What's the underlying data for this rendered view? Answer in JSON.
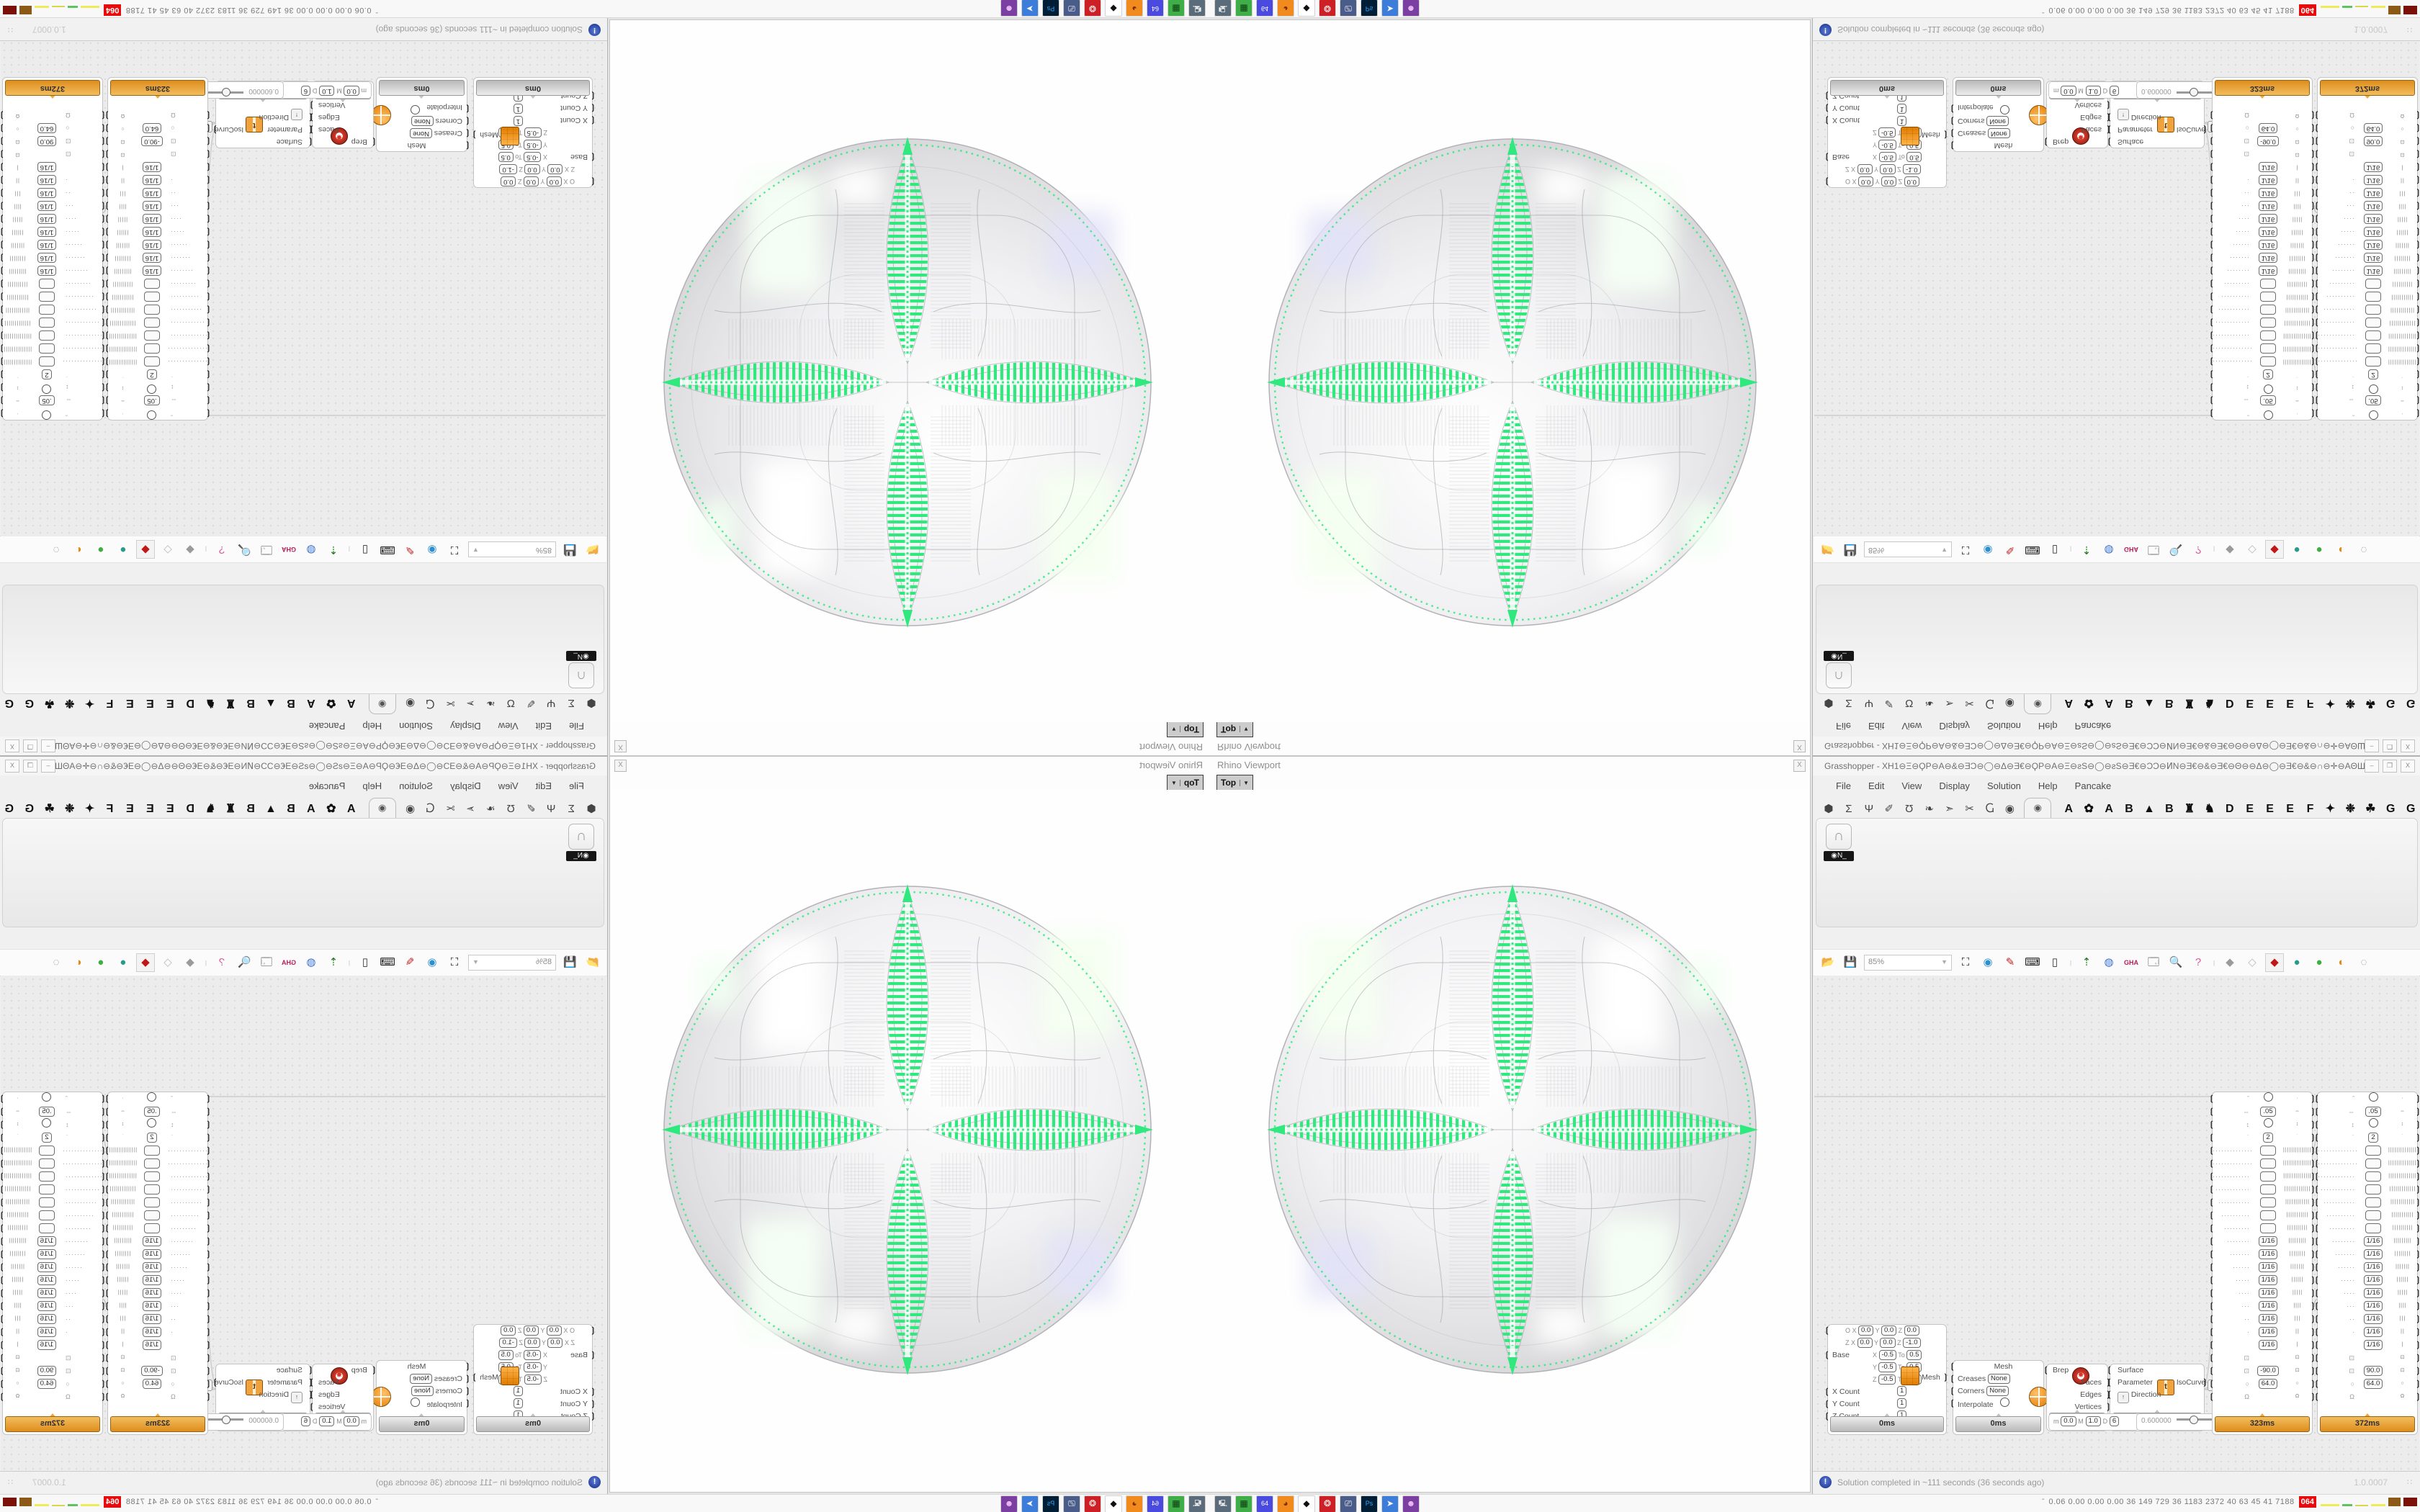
{
  "viewport_window": {
    "title": "Rhino Viewport",
    "close_glyph": "X",
    "tab": {
      "label": "Top",
      "arrow_glyph": "▼"
    },
    "sphere_colors": {
      "pattern_green": "#2FE87E",
      "wireframe": "#a6a6ab",
      "body_light": "#ffffff",
      "body_dark": "#c3c3c7",
      "highlight_lavender": "#e2e2f8"
    }
  },
  "grasshopper": {
    "title": "Grasshopper - XH1⊖Ξ⊖ϘP⊖A⊖&⊖ƎƆ⊖◯⊖Δ⊖Ǝ€⊖ϘP⊖A⊖Ξ⊖ƨS⊖◯⊖ƨS⊖Ǝ€⊖ƆƆ⊖ͶN⊖Ǝ€⊖&⊖Ǝ€⊖Θ⊖⊖Δ⊖◯⊖Ǝ€⊖&⊖∩⊖✛⊖AΘШ⊖&⊖∩ΘƆ⊖◯⊖◯⊖◯⊖◯⊖◯⊖◯⊖◯⊖◯⊖◯Ɔ_",
    "window_buttons": [
      "–",
      "❐",
      "X"
    ],
    "menus": [
      "File",
      "Edit",
      "View",
      "Display",
      "Solution",
      "Help",
      "Pancake"
    ],
    "icon_tabs": [
      {
        "name": "params",
        "glyph": "⬢"
      },
      {
        "name": "maths",
        "glyph": "Σ"
      },
      {
        "name": "sets",
        "glyph": "Ψ"
      },
      {
        "name": "vector",
        "glyph": "✐"
      },
      {
        "name": "curve",
        "glyph": "Ʊ"
      },
      {
        "name": "surface",
        "glyph": "❧"
      },
      {
        "name": "mesh",
        "glyph": "➣"
      },
      {
        "name": "intersect",
        "glyph": "✂"
      },
      {
        "name": "transform",
        "glyph": "Ⴚ"
      },
      {
        "name": "display",
        "glyph": "◉"
      }
    ],
    "selected_tab_glyph": "◉",
    "letter_tabs": [
      {
        "name": "tab-a1",
        "glyph": "A"
      },
      {
        "name": "tab-flower-icon",
        "glyph": "✿"
      },
      {
        "name": "tab-a2",
        "glyph": "A"
      },
      {
        "name": "tab-b1",
        "glyph": "B"
      },
      {
        "name": "tab-mountain-icon",
        "glyph": "▲"
      },
      {
        "name": "tab-b2",
        "glyph": "B"
      },
      {
        "name": "tab-shield-icon",
        "glyph": "♜"
      },
      {
        "name": "tab-bird-icon",
        "glyph": "♞"
      },
      {
        "name": "tab-d",
        "glyph": "D"
      },
      {
        "name": "tab-e1",
        "glyph": "E"
      },
      {
        "name": "tab-e2",
        "glyph": "E"
      },
      {
        "name": "tab-e3",
        "glyph": "E"
      },
      {
        "name": "tab-f",
        "glyph": "F"
      },
      {
        "name": "tab-fly-icon",
        "glyph": "✦"
      },
      {
        "name": "tab-bug-icon",
        "glyph": "❉"
      },
      {
        "name": "tab-leaf-icon",
        "glyph": "☘"
      },
      {
        "name": "tab-g1",
        "glyph": "G"
      },
      {
        "name": "tab-g2",
        "glyph": "G"
      }
    ],
    "ribbon_item": {
      "icon_glyph": "∩",
      "label": "◉N_"
    },
    "toolbar": {
      "zoom_value": "85%",
      "icons": [
        {
          "name": "open-file-icon",
          "glyph": "📂",
          "color": "#3fae3f"
        },
        {
          "name": "save-file-icon",
          "glyph": "💾",
          "color": "#2e5fd0"
        },
        {
          "name": "zoom-extents-icon",
          "glyph": "⛶",
          "color": "#111111"
        },
        {
          "name": "preview-eye-icon",
          "glyph": "◉",
          "color": "#2e8fd0"
        },
        {
          "name": "sketch-pen-icon",
          "glyph": "✎",
          "color": "#c42222"
        },
        {
          "name": "camera-icon",
          "glyph": "⌨",
          "color": "#222222"
        },
        {
          "name": "remote-panel-icon",
          "glyph": "▯",
          "color": "#333333"
        },
        {
          "name": "gumball-arrow-icon",
          "glyph": "⇡",
          "color": "#1a7a1a"
        },
        {
          "name": "linked-circles-icon",
          "glyph": "◍",
          "color": "#3a6fd0"
        },
        {
          "name": "gha-badge-icon",
          "glyph": "GHA",
          "color": "#b0205a"
        },
        {
          "name": "window-flag-icon",
          "glyph": "🗔",
          "color": "#444444"
        },
        {
          "name": "find-dollar-icon",
          "glyph": "🔍",
          "color": "#355a9a"
        },
        {
          "name": "help-box-icon",
          "glyph": "?",
          "color": "#e055a0"
        },
        {
          "name": "gem-gray-icon",
          "glyph": "◆",
          "color": "#9a9a9a"
        },
        {
          "name": "gem-white-icon",
          "glyph": "◇",
          "color": "#bbbbbb"
        },
        {
          "name": "gem-red-icon",
          "glyph": "◆",
          "color": "#c01818"
        },
        {
          "name": "ball-teal-icon",
          "glyph": "●",
          "color": "#2a9a8a"
        },
        {
          "name": "ball-green-icon",
          "glyph": "●",
          "color": "#3fae3f"
        },
        {
          "name": "ball-orange-icon",
          "glyph": "◐",
          "color": "#e08a1a"
        },
        {
          "name": "dashed-circle-icon",
          "glyph": "◌",
          "color": "#888888"
        }
      ]
    },
    "status": {
      "text": "Solution completed in ~111 seconds (36 seconds ago)",
      "icon_glyph": "!",
      "version": "1.0.0007",
      "grip_glyph": "∷"
    }
  },
  "nodes": {
    "mesh_box": {
      "plane_label": "P",
      "plane_rows": [
        {
          "k": "O",
          "x": "0.0",
          "y": "0.0",
          "z": "0.0"
        },
        {
          "k": "Z",
          "x": "0.0",
          "y": "0.0",
          "z": "-1.0"
        }
      ],
      "base_label": "Base",
      "domains": [
        {
          "axis": "X",
          "a": "-0.5",
          "to": "To",
          "b": "0.5"
        },
        {
          "axis": "Y",
          "a": "-0.5",
          "to": "To",
          "b": "0.5"
        },
        {
          "axis": "Z",
          "a": "-0.5",
          "to": "To",
          "b": "0.5"
        }
      ],
      "counts": [
        {
          "label": "X Count",
          "value": "1"
        },
        {
          "label": "Y Count",
          "value": "1"
        },
        {
          "label": "Z Count",
          "value": "1"
        }
      ],
      "output": "Mesh",
      "time": "0ms"
    },
    "subd": {
      "title": "Mesh",
      "rows": [
        {
          "label": "Creases",
          "value": "None"
        },
        {
          "label": "Corners",
          "value": "None"
        }
      ],
      "toggle_label": "Interpolate",
      "output": "SubD",
      "time": "0ms"
    },
    "deconstruct_brep": {
      "input": "Brep",
      "outputs": [
        "Faces",
        "Edges",
        "Vertices"
      ],
      "time": "2ms"
    },
    "isocurve": {
      "inputs": [
        "Surface",
        "Parameter",
        "Direction"
      ],
      "icon_text": "t",
      "output": "IsoCurve",
      "out_arrow": "↓",
      "dir_arrow": "↑",
      "time": "0ms"
    },
    "mini_domain": {
      "items": [
        "m",
        "0.0",
        "M",
        "1.0",
        "D",
        "6"
      ]
    },
    "mini_slider": {
      "value": "0.600000"
    },
    "tall_components": {
      "left": {
        "time": "323ms",
        "angle": "-90.0",
        "num": "64.0"
      },
      "right": {
        "time": "372ms",
        "angle": "90.0",
        "num": "64.0"
      },
      "shared_values": {
        "spacing": ".05",
        "count": "2",
        "fraction": "1/16",
        "omega": "Ω"
      },
      "rows": [
        {
          "l": "ˆ",
          "circle": true,
          "r": "·"
        },
        {
          "l": "⇔",
          "c": ".05",
          "r": "⇔"
        },
        {
          "l": "↕",
          "circle": true,
          "r": "↕"
        },
        {
          "l": "˙",
          "c": "2",
          "r": "˙"
        },
        {
          "dots": 15,
          "box": "",
          "ticks": 16
        },
        {
          "dots": 14,
          "box": "",
          "ticks": 15
        },
        {
          "dots": 13,
          "box": "",
          "ticks": 14
        },
        {
          "dots": 12,
          "box": "",
          "ticks": 13
        },
        {
          "dots": 11,
          "box": "",
          "ticks": 12
        },
        {
          "dots": 10,
          "box": "",
          "ticks": 11
        },
        {
          "dots": 9,
          "box": "",
          "ticks": 10
        },
        {
          "dots": 8,
          "box": "1/16",
          "ticks": 9
        },
        {
          "dots": 7,
          "box": "1/16",
          "ticks": 8
        },
        {
          "dots": 6,
          "box": "1/16",
          "ticks": 7
        },
        {
          "dots": 5,
          "box": "1/16",
          "ticks": 6
        },
        {
          "dots": 4,
          "box": "1/16",
          "ticks": 5
        },
        {
          "dots": 3,
          "box": "1/16",
          "ticks": 4
        },
        {
          "dots": 2,
          "box": "1/16",
          "ticks": 3
        },
        {
          "dots": 1,
          "box": "1/16",
          "ticks": 2
        },
        {
          "dots": 0,
          "box": "1/16",
          "ticks": 1
        },
        {
          "l": "⊡",
          "c": "",
          "r": "⊡"
        },
        {
          "l": "⊡",
          "c": "@angle",
          "r": "⊡"
        },
        {
          "l": "○",
          "c": "@num",
          "r": "○"
        },
        {
          "l": "Ω",
          "c": "",
          "r": "Ω"
        }
      ]
    }
  },
  "taskbar": {
    "app_icons": [
      {
        "name": "app-system-monitor",
        "glyph": "🖳",
        "bg": "#5a6b7a",
        "fg": "#ffffff"
      },
      {
        "name": "app-memory-card",
        "glyph": "▦",
        "bg": "#3fae49",
        "fg": "#0a3a0e"
      },
      {
        "name": "app-floppy-64",
        "glyph": "64",
        "bg": "#4a4ae0",
        "fg": "#ffffff"
      },
      {
        "name": "app-firefox",
        "glyph": "◕",
        "bg": "#f28b1d",
        "fg": "#7a2d00"
      },
      {
        "name": "app-inkscape",
        "glyph": "◆",
        "bg": "#ffffff",
        "fg": "#111111"
      },
      {
        "name": "app-red-badge",
        "glyph": "❂",
        "bg": "#cc2026",
        "fg": "#ffffff"
      },
      {
        "name": "app-presentation",
        "glyph": "⎚",
        "bg": "#4a5d8a",
        "fg": "#ffffff"
      },
      {
        "name": "app-photoshop",
        "glyph": "Ps",
        "bg": "#001e36",
        "fg": "#31a8ff"
      },
      {
        "name": "app-remote-desktop",
        "glyph": "➤",
        "bg": "#3b7dd8",
        "fg": "#ffffff"
      },
      {
        "name": "app-purple-bot",
        "glyph": "☻",
        "bg": "#7a3fa0",
        "fg": "#f0c0ff"
      }
    ],
    "tray": {
      "chevron_glyph": "ˆ",
      "stats": "0.06 0.00 0.00 0.00   36   149   729   36   1183 2372   40   63   45   41   7188",
      "badge": "064",
      "marks": [
        {
          "name": "tray-mark-yellow-1",
          "color": "#eeea5a",
          "w": 26,
          "h": 3
        },
        {
          "name": "tray-mark-green-1",
          "color": "#5fc45f",
          "w": 14,
          "h": 3
        },
        {
          "name": "tray-mark-dots",
          "color": "#d8d84a",
          "w": 18,
          "h": 2
        },
        {
          "name": "tray-mark-yellow-2",
          "color": "#eeea5a",
          "w": 20,
          "h": 3
        },
        {
          "name": "tray-mark-brown-block",
          "color": "#8a5a16",
          "w": 17,
          "h": 12
        },
        {
          "name": "tray-mark-darkred-block",
          "color": "#7a1008",
          "w": 19,
          "h": 12
        }
      ]
    }
  }
}
